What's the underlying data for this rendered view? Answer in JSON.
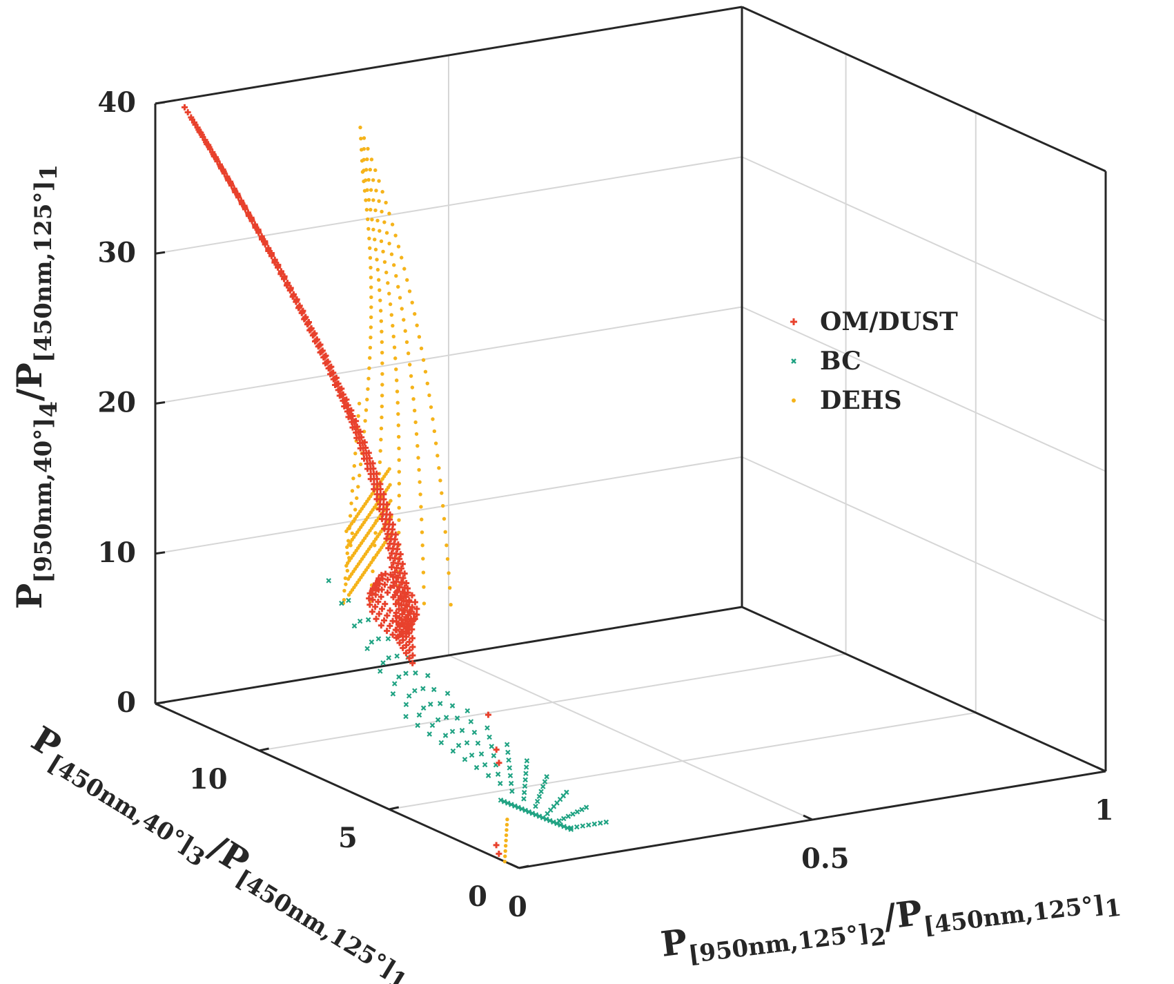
{
  "chart_data": {
    "type": "scatter",
    "dimensions": 3,
    "x_axis": {
      "label": {
        "main": "P",
        "sub": "[950nm,125°]",
        "sub2": "2",
        "sep": "/P",
        "sub3": "[450nm,125°]",
        "sub4": "1"
      },
      "lim": [
        0,
        1
      ],
      "ticks": [
        0,
        0.5,
        1
      ],
      "tick_labels": [
        "0",
        "0.5",
        "1"
      ]
    },
    "y_axis": {
      "label": {
        "main": "P",
        "sub": "[450nm,40°]",
        "sub2": "3",
        "sep": "/P",
        "sub3": "[450nm,125°]",
        "sub4": "1"
      },
      "lim": [
        0,
        14
      ],
      "ticks": [
        0,
        5,
        10
      ],
      "tick_labels": [
        "0",
        "5",
        "10"
      ]
    },
    "z_axis": {
      "label": {
        "main": "P",
        "sub": "[950nm,40°]",
        "sub2": "4",
        "sep": "/P",
        "sub3": "[450nm,125°]",
        "sub4": "1"
      },
      "lim": [
        0,
        40
      ],
      "ticks": [
        0,
        10,
        20,
        30,
        40
      ],
      "tick_labels": [
        "0",
        "10",
        "20",
        "30",
        "40"
      ]
    },
    "grid": true,
    "box": true,
    "legend_position": "right-middle",
    "series": [
      {
        "name": "OM/DUST",
        "color": "#e8412c",
        "marker": "plus"
      },
      {
        "name": "BC",
        "color": "#1fa282",
        "marker": "x"
      },
      {
        "name": "DEHS",
        "color": "#f5b31a",
        "marker": "dot"
      }
    ]
  }
}
